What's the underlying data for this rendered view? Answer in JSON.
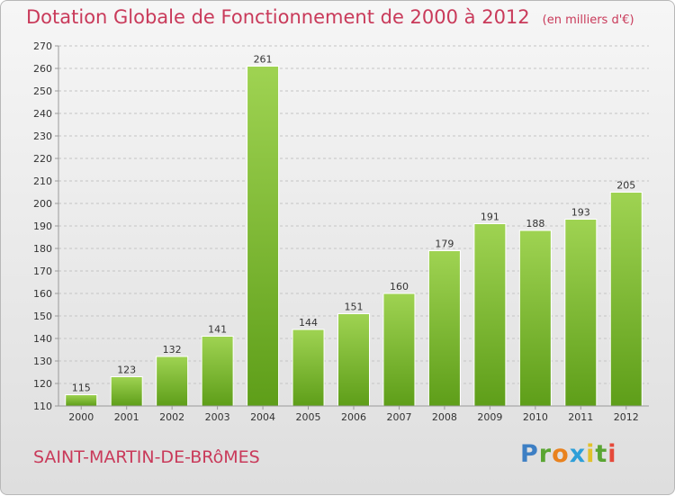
{
  "header": {
    "title": "Dotation Globale de Fonctionnement de 2000 à 2012",
    "unit": "(en milliers d'€)"
  },
  "footer": {
    "commune": "SAINT-MARTIN-DE-BRôMES",
    "brand": "Proxiti"
  },
  "colors": {
    "title": "#c93a5a",
    "bar_top": "#9fd352",
    "bar_bottom": "#5e9e19"
  },
  "chart_data": {
    "type": "bar",
    "title": "Dotation Globale de Fonctionnement de 2000 à 2012",
    "subtitle": "(en milliers d'€)",
    "xlabel": "",
    "ylabel": "",
    "categories": [
      "2000",
      "2001",
      "2002",
      "2003",
      "2004",
      "2005",
      "2006",
      "2007",
      "2008",
      "2009",
      "2010",
      "2011",
      "2012"
    ],
    "values": [
      115,
      123,
      132,
      141,
      261,
      144,
      151,
      160,
      179,
      191,
      188,
      193,
      205
    ],
    "ylim": [
      110,
      270
    ],
    "yticks": [
      110,
      120,
      130,
      140,
      150,
      160,
      170,
      180,
      190,
      200,
      210,
      220,
      230,
      240,
      250,
      260,
      270
    ],
    "grid": "horizontal dashed",
    "data_labels": true
  }
}
